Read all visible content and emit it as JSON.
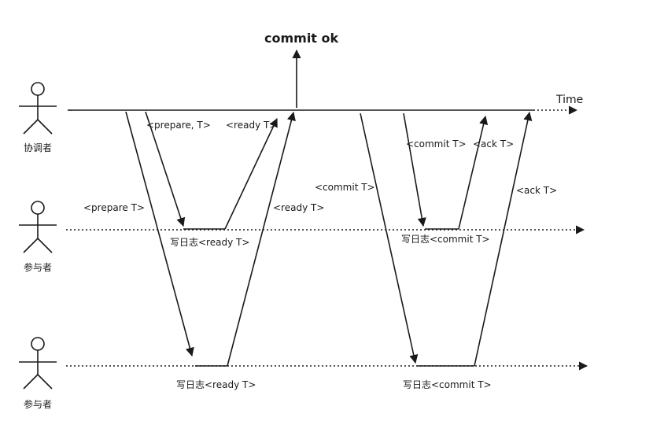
{
  "actors": [
    {
      "label": "协调者"
    },
    {
      "label": "参与者"
    },
    {
      "label": "参与者"
    }
  ],
  "time_label": "Time",
  "commit_ok_label": "commit ok",
  "messages": {
    "prepare_p2": "<prepare T>",
    "prepare_p1": "<prepare, T>",
    "ready_p1": "<ready T>",
    "ready_p2": "<ready T>",
    "commit_p2": "<commit T>",
    "commit_p1": "<commit T>",
    "ack_p1": "<ack T>",
    "ack_p2": "<ack T>"
  },
  "logs": {
    "p1_ready": "写日志<ready T>",
    "p2_ready": "写日志<ready T>",
    "p1_commit": "写日志<commit T>",
    "p2_commit": "写日志<commit T>"
  }
}
